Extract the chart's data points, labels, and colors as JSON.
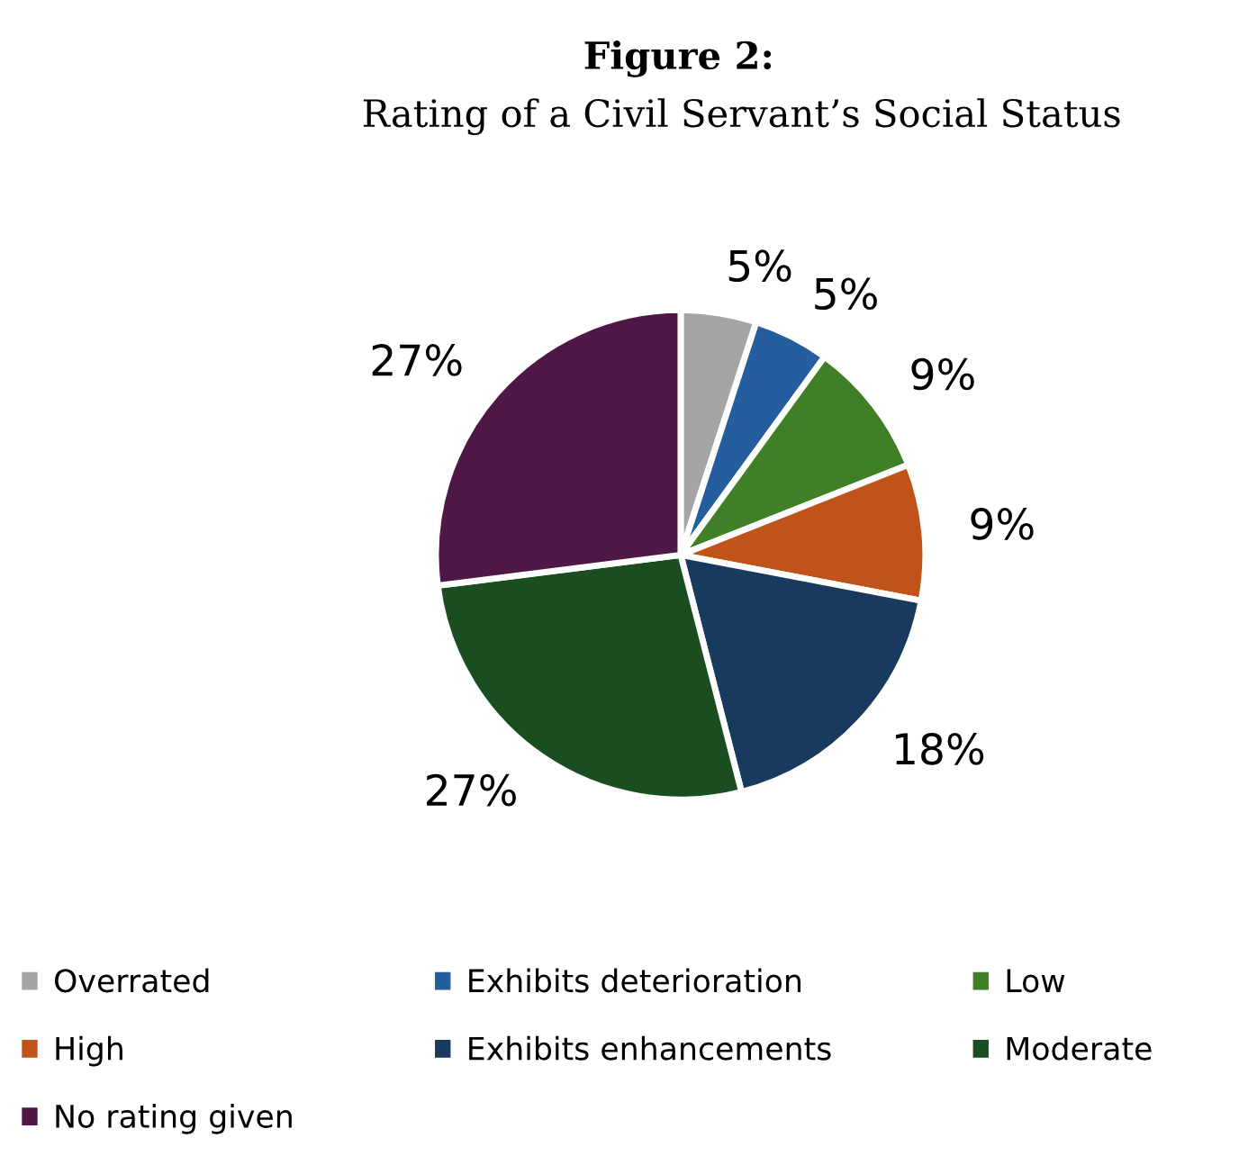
{
  "chart_data": {
    "type": "pie",
    "title": "Figure 2:",
    "subtitle": "Rating of a Civil Servant’s Social Status",
    "categories": [
      "Overrated",
      "Exhibits deterioration",
      "Low",
      "High",
      "Exhibits enhancements",
      "Moderate",
      "No rating given"
    ],
    "values": [
      5,
      5,
      9,
      9,
      18,
      27,
      27
    ],
    "value_labels": [
      "5%",
      "5%",
      "9%",
      "9%",
      "18%",
      "27%",
      "27%"
    ],
    "colors": [
      "#a5a5a5",
      "#255e9f",
      "#3f7f25",
      "#c0531a",
      "#173a5e",
      "#1a4d1f",
      "#4e1746"
    ],
    "legend": "bottom"
  }
}
